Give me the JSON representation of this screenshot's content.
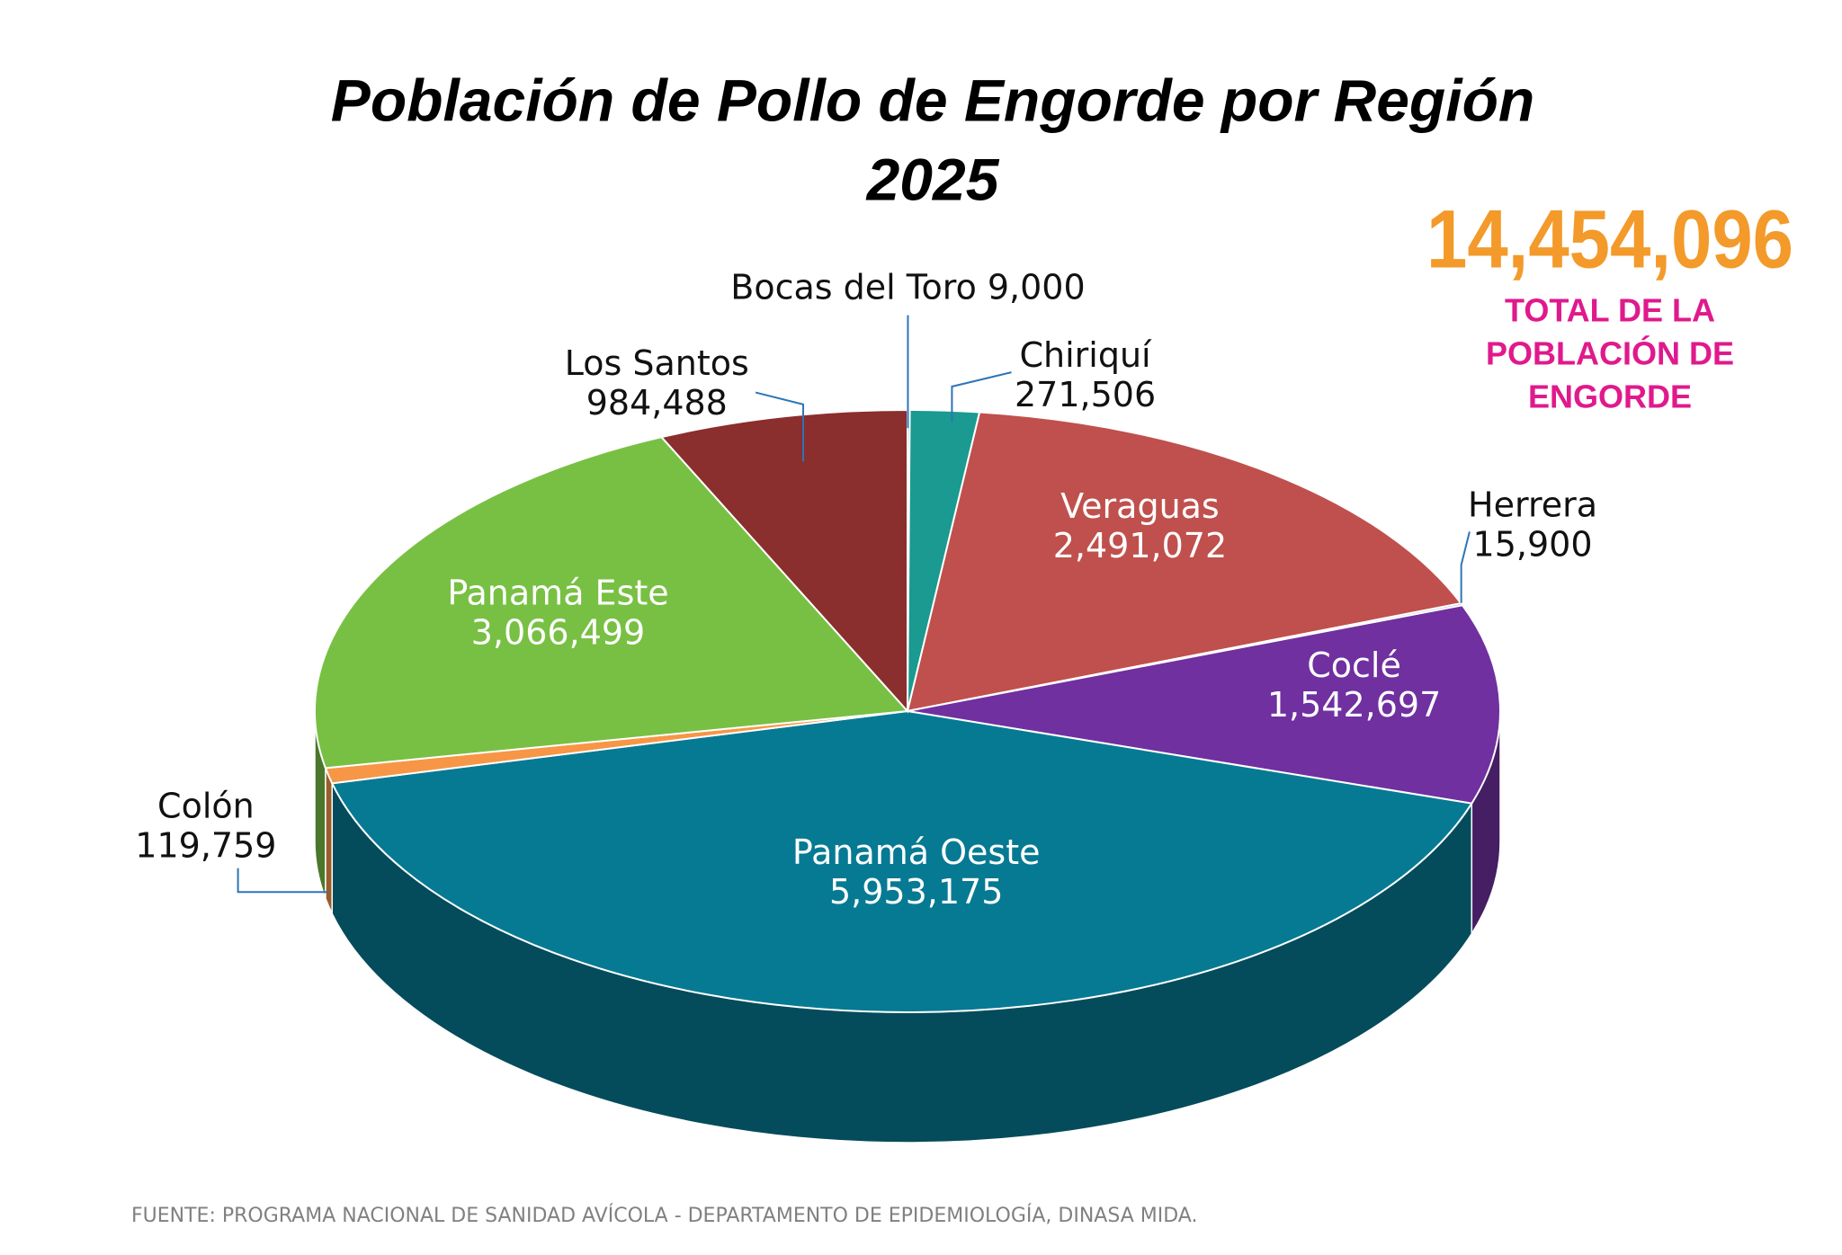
{
  "chart_data": {
    "type": "pie",
    "title": "Población de Pollo de Engorde por Región",
    "subtitle": "2025",
    "categories": [
      "Bocas del Toro",
      "Chiriquí",
      "Veraguas",
      "Herrera",
      "Coclé",
      "Panamá Oeste",
      "Colón",
      "Panamá Este",
      "Los Santos"
    ],
    "values": [
      9000,
      271506,
      2491072,
      15900,
      1542697,
      5953175,
      119759,
      3066499,
      984488
    ],
    "value_labels": [
      "9,000",
      "271,506",
      "2,491,072",
      "15,900",
      "1,542,697",
      "5,953,175",
      "119,759",
      "3,066,499",
      "984,488"
    ],
    "colors": [
      "#17b3b0",
      "#1a9a90",
      "#c0504d",
      "#4f81bd",
      "#7030a0",
      "#077a93",
      "#f79646",
      "#78c043",
      "#8b2e2e"
    ],
    "total": {
      "value": 14454096,
      "label": "14,454,096"
    },
    "total_caption": [
      "TOTAL DE LA",
      "POBLACIÓN DE",
      "ENGORDE"
    ],
    "source": "FUENTE: PROGRAMA NACIONAL DE SANIDAD AVÍCOLA -  DEPARTAMENTO DE EPIDEMIOLOGÍA, DINASA MIDA."
  }
}
